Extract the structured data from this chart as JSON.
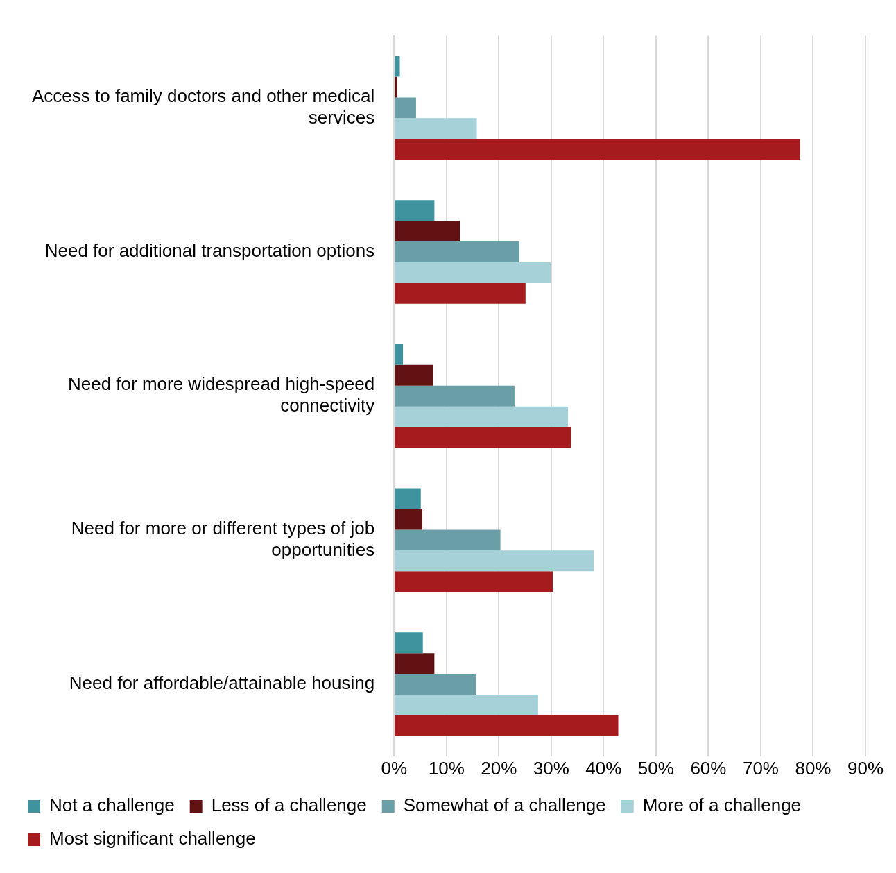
{
  "chart_data": {
    "type": "bar",
    "orientation": "horizontal",
    "categories": [
      "Access to family doctors and other medical services",
      "Need for additional transportation options",
      "Need for more widespread high-speed connectivity",
      "Need for more or different types of job opportunities",
      "Need for affordable/attainable housing"
    ],
    "series": [
      {
        "name": "Not a challenge",
        "color": "#3f939f",
        "values": [
          1.1,
          7.7,
          1.7,
          5.1,
          5.5
        ]
      },
      {
        "name": "Less of a challenge",
        "color": "#621212",
        "values": [
          0.6,
          12.6,
          7.4,
          5.4,
          7.7
        ]
      },
      {
        "name": "Somewhat of a challenge",
        "color": "#6a9fa8",
        "values": [
          4.2,
          23.9,
          23.0,
          20.3,
          15.7
        ]
      },
      {
        "name": "More of a challenge",
        "color": "#a6d1d9",
        "values": [
          15.8,
          29.9,
          33.2,
          38.1,
          27.5
        ]
      },
      {
        "name": "Most significant challenge",
        "color": "#a61c1e",
        "values": [
          77.5,
          25.1,
          33.8,
          30.3,
          42.8
        ]
      }
    ],
    "xlim": [
      0,
      90
    ],
    "xticks": [
      {
        "value": 0,
        "label": "0%"
      },
      {
        "value": 10,
        "label": "10%"
      },
      {
        "value": 20,
        "label": "20%"
      },
      {
        "value": 30,
        "label": "30%"
      },
      {
        "value": 40,
        "label": "40%"
      },
      {
        "value": 50,
        "label": "50%"
      },
      {
        "value": 60,
        "label": "60%"
      },
      {
        "value": 70,
        "label": "70%"
      },
      {
        "value": 80,
        "label": "80%"
      },
      {
        "value": 90,
        "label": "90%"
      }
    ],
    "grid": "x",
    "legend": "bottom"
  }
}
